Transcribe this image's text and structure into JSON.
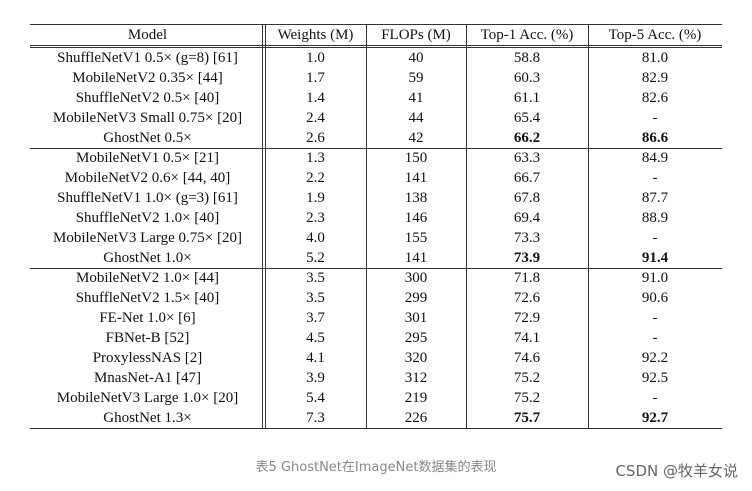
{
  "table": {
    "header": [
      "Model",
      "Weights (M)",
      "FLOPs (M)",
      "Top-1 Acc. (%)",
      "Top-5 Acc. (%)"
    ],
    "groups": [
      [
        [
          "ShuffleNetV1 0.5× (g=8) [61]",
          "1.0",
          "40",
          "58.8",
          "81.0"
        ],
        [
          "MobileNetV2 0.35× [44]",
          "1.7",
          "59",
          "60.3",
          "82.9"
        ],
        [
          "ShuffleNetV2 0.5× [40]",
          "1.4",
          "41",
          "61.1",
          "82.6"
        ],
        [
          "MobileNetV3 Small 0.75× [20]",
          "2.4",
          "44",
          "65.4",
          "-"
        ],
        [
          "GhostNet 0.5×",
          "2.6",
          "42",
          "66.2",
          "86.6"
        ]
      ],
      [
        [
          "MobileNetV1 0.5× [21]",
          "1.3",
          "150",
          "63.3",
          "84.9"
        ],
        [
          "MobileNetV2 0.6× [44, 40]",
          "2.2",
          "141",
          "66.7",
          "-"
        ],
        [
          "ShuffleNetV1 1.0× (g=3) [61]",
          "1.9",
          "138",
          "67.8",
          "87.7"
        ],
        [
          "ShuffleNetV2 1.0× [40]",
          "2.3",
          "146",
          "69.4",
          "88.9"
        ],
        [
          "MobileNetV3 Large 0.75× [20]",
          "4.0",
          "155",
          "73.3",
          "-"
        ],
        [
          "GhostNet 1.0×",
          "5.2",
          "141",
          "73.9",
          "91.4"
        ]
      ],
      [
        [
          "MobileNetV2 1.0× [44]",
          "3.5",
          "300",
          "71.8",
          "91.0"
        ],
        [
          "ShuffleNetV2 1.5× [40]",
          "3.5",
          "299",
          "72.6",
          "90.6"
        ],
        [
          "FE-Net 1.0× [6]",
          "3.7",
          "301",
          "72.9",
          "-"
        ],
        [
          "FBNet-B [52]",
          "4.5",
          "295",
          "74.1",
          "-"
        ],
        [
          "ProxylessNAS [2]",
          "4.1",
          "320",
          "74.6",
          "92.2"
        ],
        [
          "MnasNet-A1 [47]",
          "3.9",
          "312",
          "75.2",
          "92.5"
        ],
        [
          "MobileNetV3 Large 1.0× [20]",
          "5.4",
          "219",
          "75.2",
          "-"
        ],
        [
          "GhostNet 1.3×",
          "7.3",
          "226",
          "75.7",
          "92.7"
        ]
      ]
    ],
    "bold_cells": [
      [
        0,
        4,
        3
      ],
      [
        0,
        4,
        4
      ],
      [
        1,
        5,
        3
      ],
      [
        1,
        5,
        4
      ],
      [
        2,
        7,
        3
      ],
      [
        2,
        7,
        4
      ]
    ]
  },
  "caption": "表5 GhostNet在ImageNet数据集的表现",
  "watermark": "CSDN @牧羊女说"
}
